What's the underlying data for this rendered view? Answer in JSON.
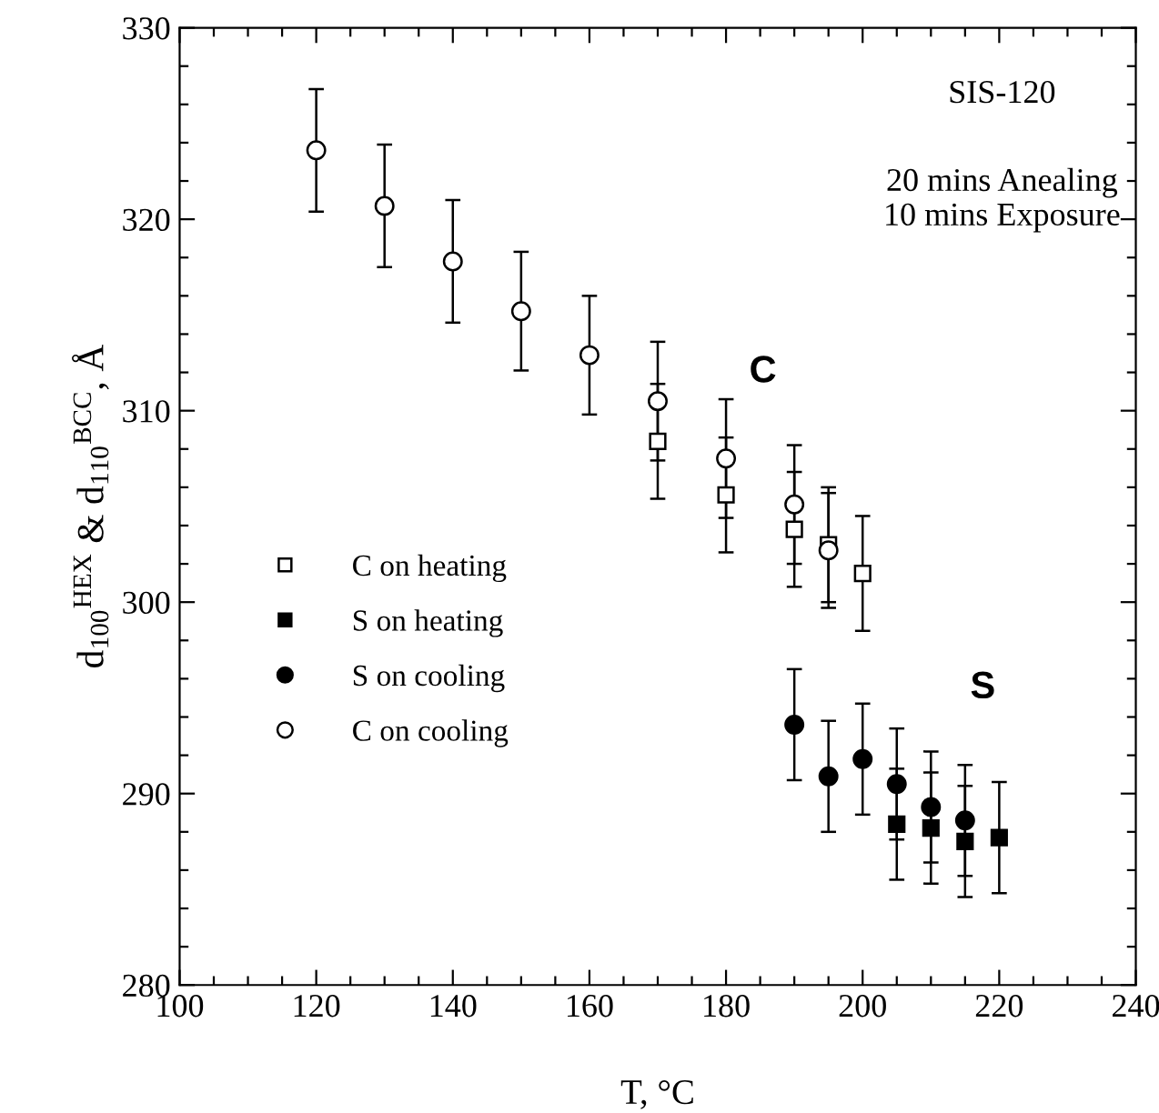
{
  "chart_data": {
    "type": "scatter",
    "xlabel": "T, °C",
    "ylabel": "d$_{100}$$^{HEX}$ & d$_{110}$$^{BCC}$, Å",
    "xlim": [
      100,
      240
    ],
    "ylim": [
      280,
      330
    ],
    "xticks": [
      100,
      {
        "value": 105,
        "label": null
      },
      {
        "value": 110,
        "label": null
      },
      {
        "value": 115,
        "label": null
      },
      120,
      {
        "value": 125,
        "label": null
      },
      {
        "value": 130,
        "label": null
      },
      {
        "value": 135,
        "label": null
      },
      140,
      {
        "value": 145,
        "label": null
      },
      {
        "value": 150,
        "label": null
      },
      {
        "value": 155,
        "label": null
      },
      160,
      {
        "value": 165,
        "label": null
      },
      {
        "value": 170,
        "label": null
      },
      {
        "value": 175,
        "label": null
      },
      180,
      {
        "value": 185,
        "label": null
      },
      {
        "value": 190,
        "label": null
      },
      {
        "value": 195,
        "label": null
      },
      200,
      {
        "value": 205,
        "label": null
      },
      {
        "value": 210,
        "label": null
      },
      {
        "value": 215,
        "label": null
      },
      220,
      {
        "value": 225,
        "label": null
      },
      {
        "value": 230,
        "label": null
      },
      {
        "value": 235,
        "label": null
      },
      240
    ],
    "yticks": [
      280,
      {
        "value": 282,
        "label": null
      },
      {
        "value": 284,
        "label": null
      },
      {
        "value": 286,
        "label": null
      },
      {
        "value": 288,
        "label": null
      },
      290,
      {
        "value": 292,
        "label": null
      },
      {
        "value": 294,
        "label": null
      },
      {
        "value": 296,
        "label": null
      },
      {
        "value": 298,
        "label": null
      },
      300,
      {
        "value": 302,
        "label": null
      },
      {
        "value": 304,
        "label": null
      },
      {
        "value": 306,
        "label": null
      },
      {
        "value": 308,
        "label": null
      },
      310,
      {
        "value": 312,
        "label": null
      },
      {
        "value": 314,
        "label": null
      },
      {
        "value": 316,
        "label": null
      },
      {
        "value": 318,
        "label": null
      },
      320,
      {
        "value": 322,
        "label": null
      },
      {
        "value": 324,
        "label": null
      },
      {
        "value": 326,
        "label": null
      },
      {
        "value": 328,
        "label": null
      },
      330
    ],
    "grid": false,
    "legend": "lower left",
    "series": [
      {
        "name": "C on heating",
        "color": "#ffffff",
        "marker": "square",
        "x": [
          170,
          180,
          190,
          195,
          200
        ],
        "values": [
          308.4,
          305.6,
          303.8,
          303.0,
          301.5
        ],
        "errors": [
          3.0,
          3.0,
          3.0,
          3.0,
          3.0
        ]
      },
      {
        "name": "S on heating",
        "color": "#000000",
        "marker": "square",
        "x": [
          205,
          210,
          215,
          220
        ],
        "values": [
          288.4,
          288.2,
          287.5,
          287.7
        ],
        "errors": [
          2.9,
          2.9,
          2.9,
          2.9
        ]
      },
      {
        "name": "S on cooling",
        "color": "#000000",
        "marker": "circle",
        "x": [
          190,
          195,
          200,
          205,
          210,
          215
        ],
        "values": [
          293.6,
          290.9,
          291.8,
          290.5,
          289.3,
          288.6
        ],
        "errors": [
          2.9,
          2.9,
          2.9,
          2.9,
          2.9,
          2.9
        ]
      },
      {
        "name": "C on cooling",
        "color": "#ffffff",
        "marker": "circle",
        "x": [
          120,
          130,
          140,
          150,
          160,
          170,
          180,
          190,
          195
        ],
        "values": [
          323.6,
          320.7,
          317.8,
          315.2,
          312.9,
          310.5,
          307.5,
          305.1,
          302.7
        ],
        "errors": [
          3.2,
          3.2,
          3.2,
          3.1,
          3.1,
          3.1,
          3.1,
          3.1,
          3.0
        ]
      }
    ],
    "annotations": [
      "C",
      "S",
      "SIS-120",
      "20 mins Anealing\n10 mins Exposure"
    ]
  }
}
